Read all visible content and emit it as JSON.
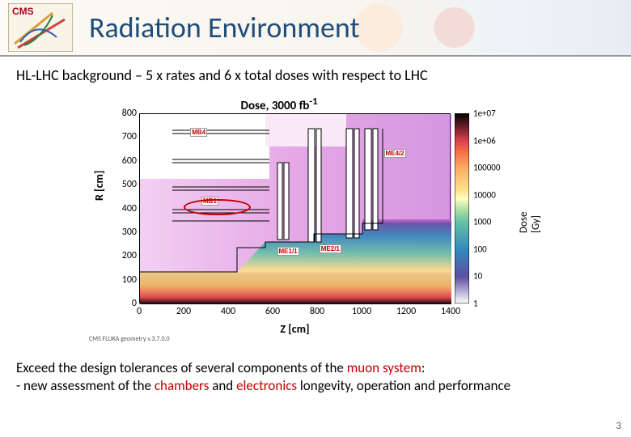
{
  "header": {
    "title": "Radiation Environment",
    "logo_text": "CMS"
  },
  "subtitle": "HL-LHC background – 5 x rates and 6 x total doses with respect to LHC",
  "chart": {
    "type": "heatmap",
    "title": "Dose, 3000 fb",
    "title_sup": "-1",
    "xlabel": "Z [cm]",
    "ylabel": "R [cm]",
    "xlim": [
      0,
      1400
    ],
    "ylim": [
      0,
      800
    ],
    "xticks": [
      0,
      200,
      400,
      600,
      800,
      1000,
      1200,
      1400
    ],
    "yticks": [
      0,
      100,
      200,
      300,
      400,
      500,
      600,
      700,
      800
    ],
    "colorbar": {
      "label": "Dose [Gy]",
      "scale": "log",
      "range": [
        1,
        10000000.0
      ],
      "ticks": [
        "1",
        "10",
        "100",
        "1000",
        "10000",
        "100000",
        "1e+06",
        "1e+07"
      ],
      "stops": [
        {
          "v": 1,
          "color": "#ffffff"
        },
        {
          "v": 10,
          "color": "#5e4fa2"
        },
        {
          "v": 100,
          "color": "#3288bd"
        },
        {
          "v": 1000,
          "color": "#66c2a5"
        },
        {
          "v": 10000,
          "color": "#fee08b"
        },
        {
          "v": 100000,
          "color": "#fdae61"
        },
        {
          "v": 1000000,
          "color": "#d53e4f"
        },
        {
          "v": 10000000.0,
          "color": "#000000"
        }
      ]
    },
    "region_labels": [
      {
        "text": "MB4",
        "z": 230,
        "r": 740
      },
      {
        "text": "ME4/2",
        "z": 1100,
        "r": 650
      },
      {
        "text": "MB1",
        "z": 280,
        "r": 450
      },
      {
        "text": "ME1/1",
        "z": 620,
        "r": 240
      },
      {
        "text": "ME2/1",
        "z": 810,
        "r": 250
      }
    ],
    "highlight": {
      "z0": 200,
      "z1": 500,
      "r0": 370,
      "r1": 440
    },
    "background_color": "#ffffff",
    "dominant_field_color": "#d060d0",
    "hot_region_color": "#e89030",
    "detector_outline_color": "#000000",
    "fluka_note": "CMS FLUKA geometry v.3.7.0.0"
  },
  "footer": {
    "line1_plain1": "Exceed the design tolerances of several components of the ",
    "line1_accent": "muon system",
    "line1_plain2": ":",
    "line2_plain1": "- new assessment of the ",
    "line2_accent1": "chambers",
    "line2_plain2": " and ",
    "line2_accent2": "electronics",
    "line2_plain3": " longevity, operation  and performance"
  },
  "page_number": "3"
}
